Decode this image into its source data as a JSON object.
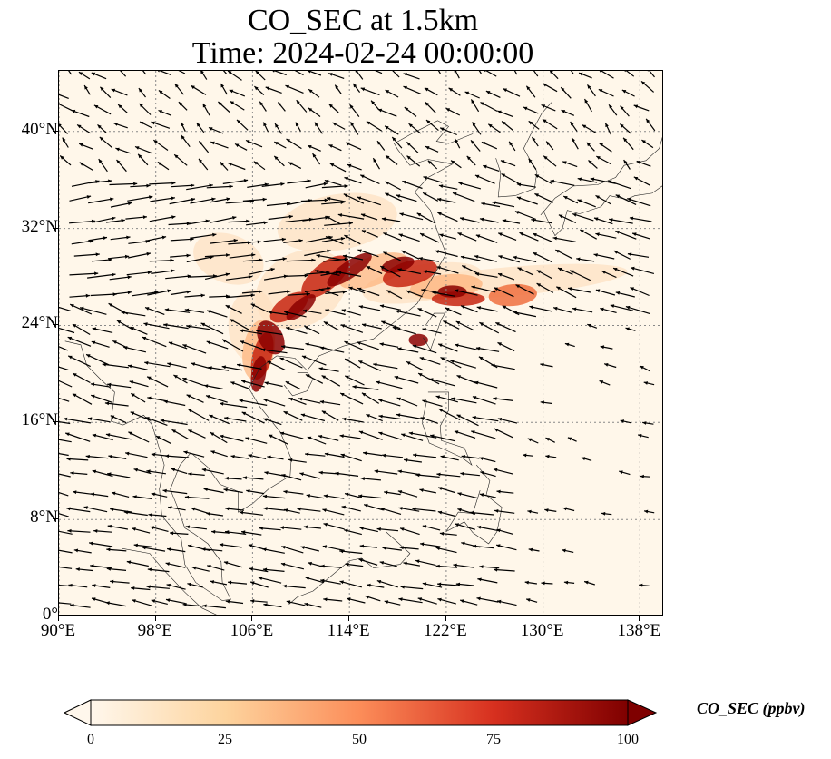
{
  "title": {
    "line1": "CO_SEC at 1.5km",
    "line2": "Time: 2024-02-24 00:00:00"
  },
  "map": {
    "lon_range": [
      90,
      140
    ],
    "lat_range": [
      0,
      45
    ],
    "lat_ticks": [
      "0°",
      "8°N",
      "16°N",
      "24°N",
      "32°N",
      "40°N"
    ],
    "lon_ticks": [
      "90°E",
      "98°E",
      "106°E",
      "114°E",
      "122°E",
      "130°E",
      "138°E"
    ],
    "gridlines": "dotted",
    "background_color": "#fff7ea",
    "plume_colors": [
      "#fde0c0",
      "#fdb27a",
      "#f0703f",
      "#c72410",
      "#8b0000"
    ],
    "wind_vectors": "black arrows"
  },
  "colorbar": {
    "label": "CO_SEC (ppbv)",
    "ticks": [
      "0",
      "25",
      "50",
      "75",
      "100"
    ],
    "range": [
      0,
      100
    ],
    "extend": "both",
    "cmap_colors": [
      "#fff7ec",
      "#fdd49e",
      "#fc8d59",
      "#d7301f",
      "#7f0000"
    ]
  }
}
